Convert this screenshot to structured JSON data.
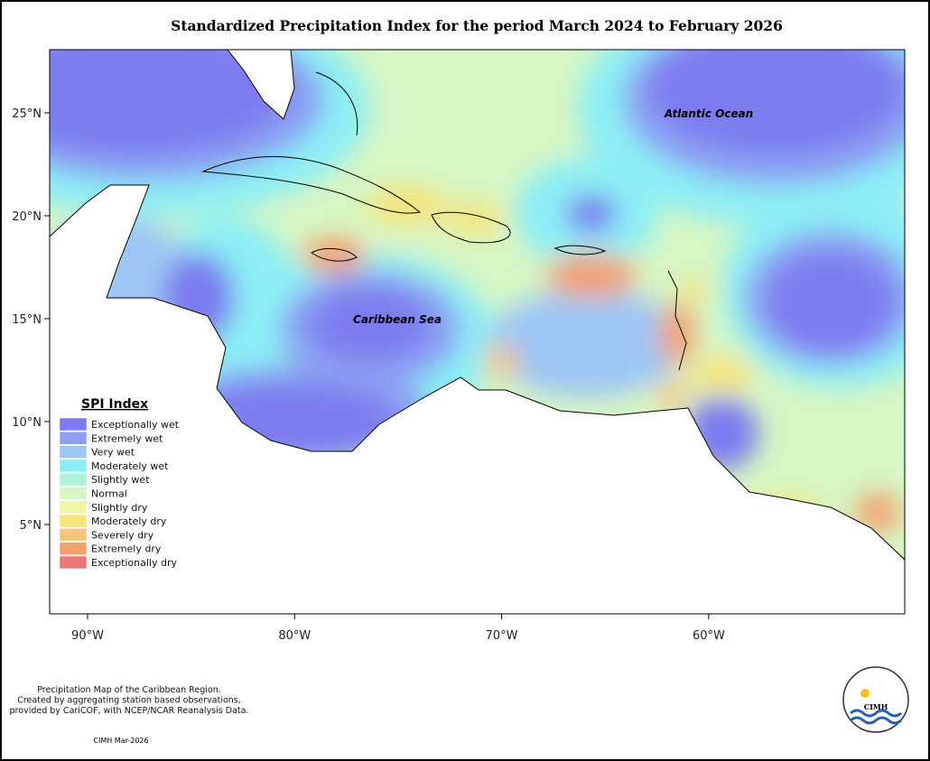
{
  "title": "Standardized Precipitation Index for the period March 2024 to February 2026",
  "map": {
    "xticks": [
      "90°W",
      "80°W",
      "70°W",
      "60°W"
    ],
    "yticks": [
      "25°N",
      "20°N",
      "15°N",
      "10°N",
      "5°N"
    ],
    "labels": [
      "Atlantic Ocean",
      "Caribbean Sea"
    ]
  },
  "legend": {
    "title": "SPI Index",
    "items": [
      {
        "label": "Exceptionally wet",
        "color": "#7b7bef"
      },
      {
        "label": "Extremely wet",
        "color": "#8c9ff3"
      },
      {
        "label": "Very wet",
        "color": "#9ec6f5"
      },
      {
        "label": "Moderately wet",
        "color": "#8ceef5"
      },
      {
        "label": "Slightly wet",
        "color": "#aef3dc"
      },
      {
        "label": "Normal",
        "color": "#d6f6c4"
      },
      {
        "label": "Slightly dry",
        "color": "#eef5a6"
      },
      {
        "label": "Moderately dry",
        "color": "#f6e37a"
      },
      {
        "label": "Severely dry",
        "color": "#f6c47a"
      },
      {
        "label": "Extremely dry",
        "color": "#f3a06e"
      },
      {
        "label": "Exceptionally dry",
        "color": "#ee7676"
      }
    ]
  },
  "footer": {
    "notes": [
      "Precipitation Map of the Caribbean Region.",
      "Created by aggregating station based observations,",
      "provided by CariCOF, with NCEP/NCAR Reanalysis Data."
    ],
    "credit": "CIMH Mar-2026"
  },
  "logo": {
    "text": "CIMH"
  }
}
